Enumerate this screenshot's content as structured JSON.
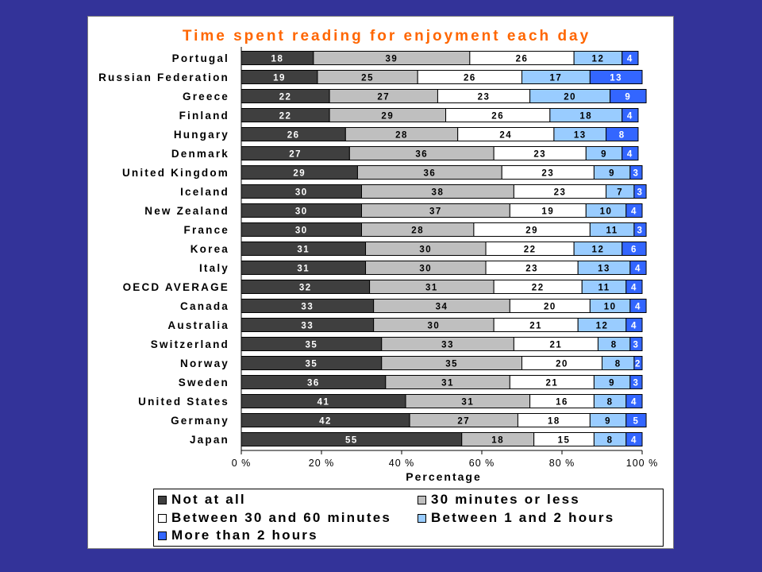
{
  "chart_data": {
    "type": "bar",
    "orientation": "horizontal",
    "stacked": true,
    "title": "Time spent reading for enjoyment each day",
    "xlabel": "Percentage",
    "xlim": [
      0,
      100
    ],
    "x_ticks": [
      "0 %",
      "20 %",
      "40 %",
      "60 %",
      "80 %",
      "100 %"
    ],
    "grid": false,
    "legend_position": "bottom",
    "categories": [
      "Portugal",
      "Russian Federation",
      "Greece",
      "Finland",
      "Hungary",
      "Denmark",
      "United Kingdom",
      "Iceland",
      "New Zealand",
      "France",
      "Korea",
      "Italy",
      "OECD AVERAGE",
      "Canada",
      "Australia",
      "Switzerland",
      "Norway",
      "Sweden",
      "United States",
      "Germany",
      "Japan"
    ],
    "series": [
      {
        "name": "Not at all",
        "color": "#3f3f3f",
        "label_color": "#ffffff",
        "values": [
          18,
          19,
          22,
          22,
          26,
          27,
          29,
          30,
          30,
          30,
          31,
          31,
          32,
          33,
          33,
          35,
          35,
          36,
          41,
          42,
          55
        ]
      },
      {
        "name": "30 minutes or less",
        "color": "#bfbfbf",
        "label_color": "#000000",
        "values": [
          39,
          25,
          27,
          29,
          28,
          36,
          36,
          38,
          37,
          28,
          30,
          30,
          31,
          34,
          30,
          33,
          35,
          31,
          31,
          27,
          18
        ]
      },
      {
        "name": "Between 30 and 60 minutes",
        "color": "#ffffff",
        "label_color": "#000000",
        "values": [
          26,
          26,
          23,
          26,
          24,
          23,
          23,
          23,
          19,
          29,
          22,
          23,
          22,
          20,
          21,
          21,
          20,
          21,
          16,
          18,
          15
        ]
      },
      {
        "name": "Between 1 and 2 hours",
        "color": "#99ccff",
        "label_color": "#000000",
        "values": [
          12,
          17,
          20,
          18,
          13,
          9,
          9,
          7,
          10,
          11,
          12,
          13,
          11,
          10,
          12,
          8,
          8,
          9,
          8,
          9,
          8
        ]
      },
      {
        "name": "More than 2 hours",
        "color": "#3366ff",
        "label_color": "#ffffff",
        "values": [
          4,
          13,
          9,
          4,
          8,
          4,
          3,
          3,
          4,
          3,
          6,
          4,
          4,
          4,
          4,
          3,
          2,
          3,
          4,
          5,
          4
        ]
      }
    ],
    "colors": {
      "background": "#333399",
      "title": "#ff6600",
      "panel": "#ffffff"
    }
  }
}
